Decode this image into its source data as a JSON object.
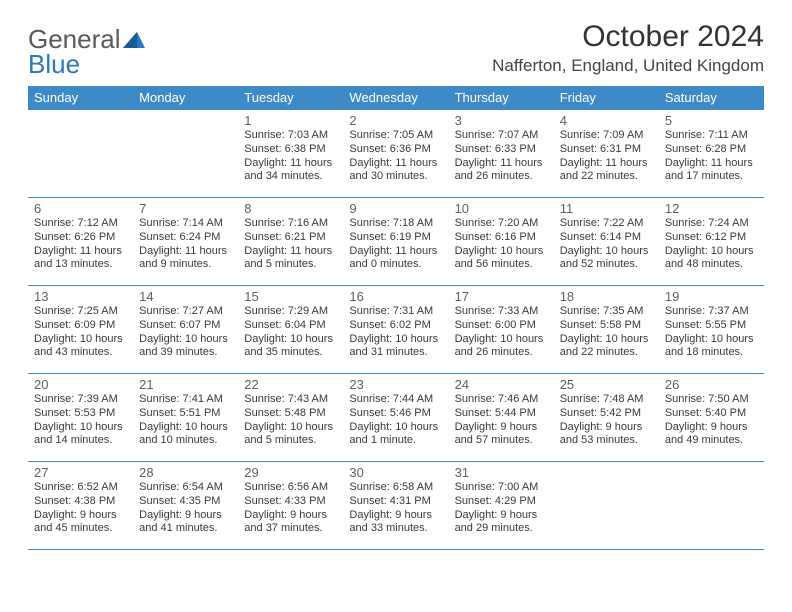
{
  "brand": {
    "part1": "General",
    "part2": "Blue"
  },
  "title": "October 2024",
  "location": "Nafferton, England, United Kingdom",
  "colors": {
    "header_bg": "#3d8ac7",
    "header_text": "#ffffff",
    "border": "#3d8ac7",
    "logo_general": "#5a5a5a",
    "logo_blue": "#2a78bd",
    "text": "#333333"
  },
  "weekdays": [
    "Sunday",
    "Monday",
    "Tuesday",
    "Wednesday",
    "Thursday",
    "Friday",
    "Saturday"
  ],
  "weeks": [
    [
      null,
      null,
      {
        "n": "1",
        "sunrise": "Sunrise: 7:03 AM",
        "sunset": "Sunset: 6:38 PM",
        "day": "Daylight: 11 hours and 34 minutes."
      },
      {
        "n": "2",
        "sunrise": "Sunrise: 7:05 AM",
        "sunset": "Sunset: 6:36 PM",
        "day": "Daylight: 11 hours and 30 minutes."
      },
      {
        "n": "3",
        "sunrise": "Sunrise: 7:07 AM",
        "sunset": "Sunset: 6:33 PM",
        "day": "Daylight: 11 hours and 26 minutes."
      },
      {
        "n": "4",
        "sunrise": "Sunrise: 7:09 AM",
        "sunset": "Sunset: 6:31 PM",
        "day": "Daylight: 11 hours and 22 minutes."
      },
      {
        "n": "5",
        "sunrise": "Sunrise: 7:11 AM",
        "sunset": "Sunset: 6:28 PM",
        "day": "Daylight: 11 hours and 17 minutes."
      }
    ],
    [
      {
        "n": "6",
        "sunrise": "Sunrise: 7:12 AM",
        "sunset": "Sunset: 6:26 PM",
        "day": "Daylight: 11 hours and 13 minutes."
      },
      {
        "n": "7",
        "sunrise": "Sunrise: 7:14 AM",
        "sunset": "Sunset: 6:24 PM",
        "day": "Daylight: 11 hours and 9 minutes."
      },
      {
        "n": "8",
        "sunrise": "Sunrise: 7:16 AM",
        "sunset": "Sunset: 6:21 PM",
        "day": "Daylight: 11 hours and 5 minutes."
      },
      {
        "n": "9",
        "sunrise": "Sunrise: 7:18 AM",
        "sunset": "Sunset: 6:19 PM",
        "day": "Daylight: 11 hours and 0 minutes."
      },
      {
        "n": "10",
        "sunrise": "Sunrise: 7:20 AM",
        "sunset": "Sunset: 6:16 PM",
        "day": "Daylight: 10 hours and 56 minutes."
      },
      {
        "n": "11",
        "sunrise": "Sunrise: 7:22 AM",
        "sunset": "Sunset: 6:14 PM",
        "day": "Daylight: 10 hours and 52 minutes."
      },
      {
        "n": "12",
        "sunrise": "Sunrise: 7:24 AM",
        "sunset": "Sunset: 6:12 PM",
        "day": "Daylight: 10 hours and 48 minutes."
      }
    ],
    [
      {
        "n": "13",
        "sunrise": "Sunrise: 7:25 AM",
        "sunset": "Sunset: 6:09 PM",
        "day": "Daylight: 10 hours and 43 minutes."
      },
      {
        "n": "14",
        "sunrise": "Sunrise: 7:27 AM",
        "sunset": "Sunset: 6:07 PM",
        "day": "Daylight: 10 hours and 39 minutes."
      },
      {
        "n": "15",
        "sunrise": "Sunrise: 7:29 AM",
        "sunset": "Sunset: 6:04 PM",
        "day": "Daylight: 10 hours and 35 minutes."
      },
      {
        "n": "16",
        "sunrise": "Sunrise: 7:31 AM",
        "sunset": "Sunset: 6:02 PM",
        "day": "Daylight: 10 hours and 31 minutes."
      },
      {
        "n": "17",
        "sunrise": "Sunrise: 7:33 AM",
        "sunset": "Sunset: 6:00 PM",
        "day": "Daylight: 10 hours and 26 minutes."
      },
      {
        "n": "18",
        "sunrise": "Sunrise: 7:35 AM",
        "sunset": "Sunset: 5:58 PM",
        "day": "Daylight: 10 hours and 22 minutes."
      },
      {
        "n": "19",
        "sunrise": "Sunrise: 7:37 AM",
        "sunset": "Sunset: 5:55 PM",
        "day": "Daylight: 10 hours and 18 minutes."
      }
    ],
    [
      {
        "n": "20",
        "sunrise": "Sunrise: 7:39 AM",
        "sunset": "Sunset: 5:53 PM",
        "day": "Daylight: 10 hours and 14 minutes."
      },
      {
        "n": "21",
        "sunrise": "Sunrise: 7:41 AM",
        "sunset": "Sunset: 5:51 PM",
        "day": "Daylight: 10 hours and 10 minutes."
      },
      {
        "n": "22",
        "sunrise": "Sunrise: 7:43 AM",
        "sunset": "Sunset: 5:48 PM",
        "day": "Daylight: 10 hours and 5 minutes."
      },
      {
        "n": "23",
        "sunrise": "Sunrise: 7:44 AM",
        "sunset": "Sunset: 5:46 PM",
        "day": "Daylight: 10 hours and 1 minute."
      },
      {
        "n": "24",
        "sunrise": "Sunrise: 7:46 AM",
        "sunset": "Sunset: 5:44 PM",
        "day": "Daylight: 9 hours and 57 minutes."
      },
      {
        "n": "25",
        "sunrise": "Sunrise: 7:48 AM",
        "sunset": "Sunset: 5:42 PM",
        "day": "Daylight: 9 hours and 53 minutes."
      },
      {
        "n": "26",
        "sunrise": "Sunrise: 7:50 AM",
        "sunset": "Sunset: 5:40 PM",
        "day": "Daylight: 9 hours and 49 minutes."
      }
    ],
    [
      {
        "n": "27",
        "sunrise": "Sunrise: 6:52 AM",
        "sunset": "Sunset: 4:38 PM",
        "day": "Daylight: 9 hours and 45 minutes."
      },
      {
        "n": "28",
        "sunrise": "Sunrise: 6:54 AM",
        "sunset": "Sunset: 4:35 PM",
        "day": "Daylight: 9 hours and 41 minutes."
      },
      {
        "n": "29",
        "sunrise": "Sunrise: 6:56 AM",
        "sunset": "Sunset: 4:33 PM",
        "day": "Daylight: 9 hours and 37 minutes."
      },
      {
        "n": "30",
        "sunrise": "Sunrise: 6:58 AM",
        "sunset": "Sunset: 4:31 PM",
        "day": "Daylight: 9 hours and 33 minutes."
      },
      {
        "n": "31",
        "sunrise": "Sunrise: 7:00 AM",
        "sunset": "Sunset: 4:29 PM",
        "day": "Daylight: 9 hours and 29 minutes."
      },
      null,
      null
    ]
  ]
}
